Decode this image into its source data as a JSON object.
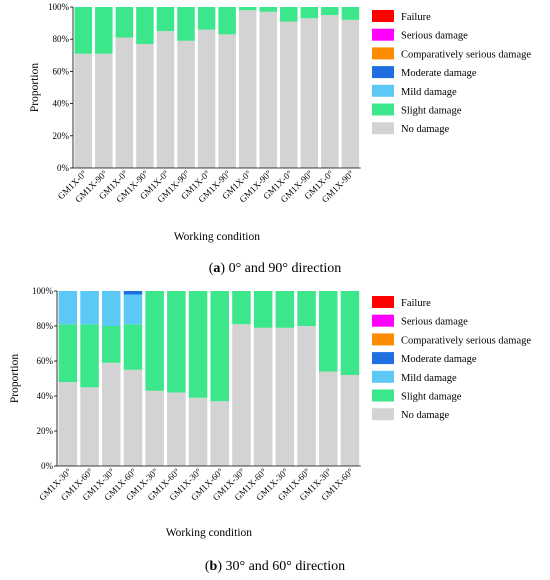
{
  "legend": {
    "entries": [
      "Failure",
      "Serious damage",
      "Comparatively serious damage",
      "Moderate damage",
      "Mild damage",
      "Slight damage",
      "No damage"
    ],
    "colors": [
      "#ff0000",
      "#ff00ff",
      "#ff8c00",
      "#1f6fe0",
      "#5bc8f5",
      "#3ce68a",
      "#d3d3d3"
    ]
  },
  "captions": {
    "a_letter": "a",
    "a_text": " 0° and 90° direction",
    "b_letter": "b",
    "b_text": " 30° and 60° direction"
  },
  "chart_data": [
    {
      "type": "bar",
      "stacked": true,
      "xlabel": "Working condition",
      "ylabel": "Proportion",
      "ylim": [
        0,
        100
      ],
      "yticks": [
        "0%",
        "20%",
        "40%",
        "60%",
        "80%",
        "100%"
      ],
      "categories": [
        "GM1X-0°",
        "GM1X-90°",
        "GM1X-0°",
        "GM1X-90°",
        "GM1X-0°",
        "GM1X-90°",
        "GM1X-0°",
        "GM1X-90°",
        "GM1X-0°",
        "GM1X-90°",
        "GM1X-0°",
        "GM1X-90°",
        "GM1X-0°",
        "GM1X-90°"
      ],
      "series": [
        {
          "name": "No damage",
          "values": [
            71,
            71,
            81,
            77,
            85,
            79,
            86,
            83,
            98,
            97,
            91,
            93,
            95,
            92
          ]
        },
        {
          "name": "Slight damage",
          "values": [
            29,
            29,
            19,
            23,
            15,
            21,
            14,
            17,
            2,
            3,
            9,
            7,
            5,
            8
          ]
        },
        {
          "name": "Mild damage",
          "values": [
            0,
            0,
            0,
            0,
            0,
            0,
            0,
            0,
            0,
            0,
            0,
            0,
            0,
            0
          ]
        },
        {
          "name": "Moderate damage",
          "values": [
            0,
            0,
            0,
            0,
            0,
            0,
            0,
            0,
            0,
            0,
            0,
            0,
            0,
            0
          ]
        },
        {
          "name": "Comparatively serious damage",
          "values": [
            0,
            0,
            0,
            0,
            0,
            0,
            0,
            0,
            0,
            0,
            0,
            0,
            0,
            0
          ]
        },
        {
          "name": "Serious damage",
          "values": [
            0,
            0,
            0,
            0,
            0,
            0,
            0,
            0,
            0,
            0,
            0,
            0,
            0,
            0
          ]
        },
        {
          "name": "Failure",
          "values": [
            0,
            0,
            0,
            0,
            0,
            0,
            0,
            0,
            0,
            0,
            0,
            0,
            0,
            0
          ]
        }
      ],
      "legend_position": "right"
    },
    {
      "type": "bar",
      "stacked": true,
      "xlabel": "Working condition",
      "ylabel": "Proportion",
      "ylim": [
        0,
        100
      ],
      "yticks": [
        "0%",
        "20%",
        "40%",
        "60%",
        "80%",
        "100%"
      ],
      "categories": [
        "GM1X-30°",
        "GM1X-60°",
        "GM1X-30°",
        "GM1X-60°",
        "GM1X-30°",
        "GM1X-60°",
        "GM1X-30°",
        "GM1X-60°",
        "GM1X-30°",
        "GM1X-60°",
        "GM1X-30°",
        "GM1X-60°",
        "GM1X-30°",
        "GM1X-60°"
      ],
      "series": [
        {
          "name": "No damage",
          "values": [
            48,
            45,
            59,
            55,
            43,
            42,
            39,
            37,
            81,
            79,
            79,
            80,
            54,
            52
          ]
        },
        {
          "name": "Slight damage",
          "values": [
            33,
            36,
            21,
            26,
            57,
            58,
            61,
            63,
            19,
            21,
            21,
            20,
            46,
            48
          ]
        },
        {
          "name": "Mild damage",
          "values": [
            19,
            19,
            20,
            17,
            0,
            0,
            0,
            0,
            0,
            0,
            0,
            0,
            0,
            0
          ]
        },
        {
          "name": "Moderate damage",
          "values": [
            0,
            0,
            0,
            2,
            0,
            0,
            0,
            0,
            0,
            0,
            0,
            0,
            0,
            0
          ]
        },
        {
          "name": "Comparatively serious damage",
          "values": [
            0,
            0,
            0,
            0,
            0,
            0,
            0,
            0,
            0,
            0,
            0,
            0,
            0,
            0
          ]
        },
        {
          "name": "Serious damage",
          "values": [
            0,
            0,
            0,
            0,
            0,
            0,
            0,
            0,
            0,
            0,
            0,
            0,
            0,
            0
          ]
        },
        {
          "name": "Failure",
          "values": [
            0,
            0,
            0,
            0,
            0,
            0,
            0,
            0,
            0,
            0,
            0,
            0,
            0,
            0
          ]
        }
      ],
      "legend_position": "right"
    }
  ]
}
